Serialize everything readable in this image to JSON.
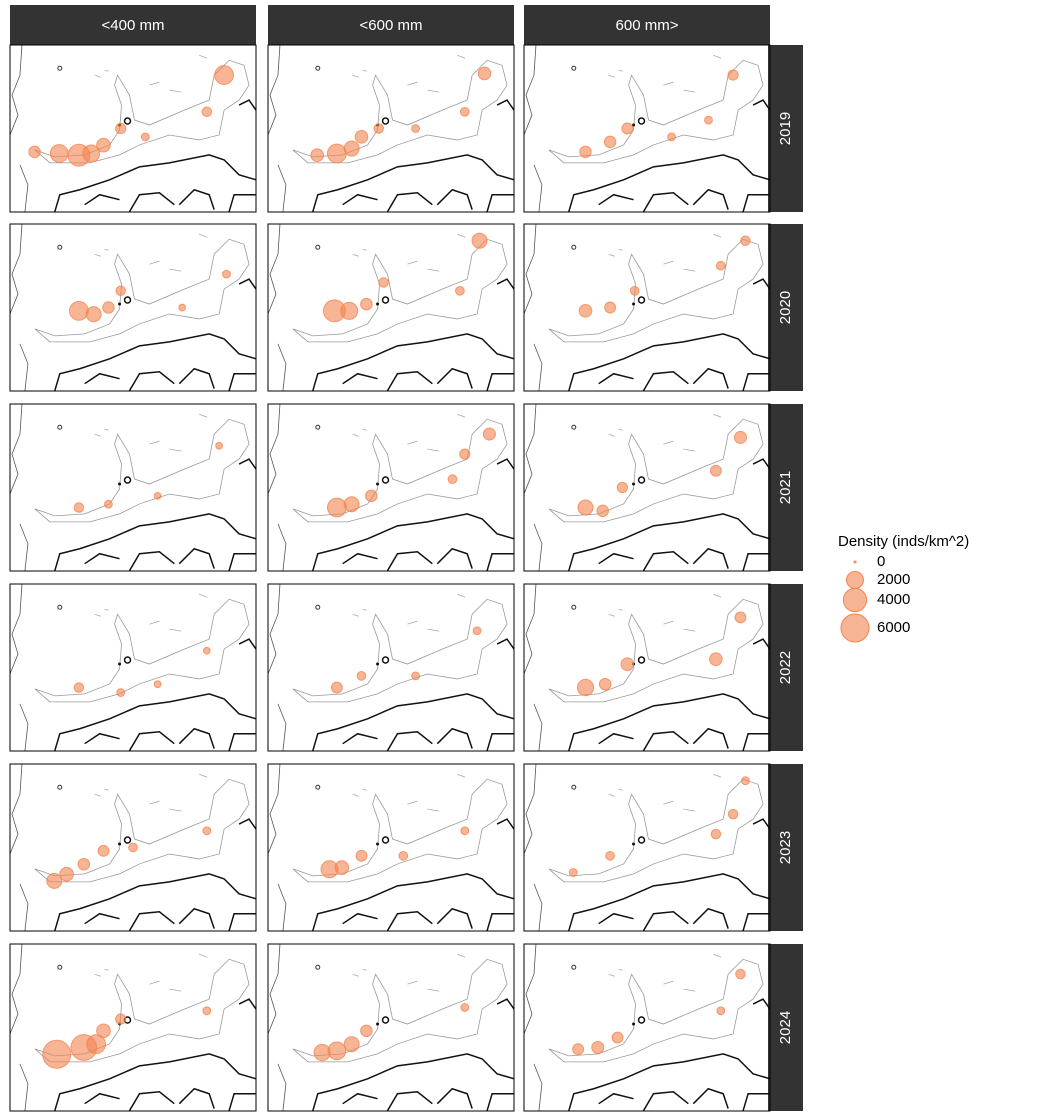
{
  "chart_data": {
    "type": "bubble-map",
    "columns": [
      "<400 mm",
      "<600 mm",
      "600 mm>"
    ],
    "rows": [
      "2019",
      "2020",
      "2021",
      "2022",
      "2023",
      "2024"
    ],
    "legend_title": "Density (inds/km^2)",
    "legend_values": [
      0,
      2000,
      4000,
      6000
    ],
    "color": "#f4844f",
    "xlim": [
      0,
      100
    ],
    "ylim": [
      0,
      100
    ],
    "size_max": 6000,
    "panels": [
      {
        "x": [
          10,
          20,
          28,
          33,
          38,
          45,
          87,
          80,
          55
        ],
        "y": [
          36,
          35,
          34,
          35,
          40,
          50,
          82,
          60,
          45
        ],
        "density": [
          800,
          2200,
          3500,
          2000,
          1200,
          600,
          2500,
          500,
          300
        ]
      },
      {
        "x": [
          20,
          28,
          34,
          38,
          45,
          88,
          80,
          60
        ],
        "y": [
          34,
          35,
          38,
          45,
          50,
          83,
          60,
          50
        ],
        "density": [
          1000,
          2500,
          1500,
          1000,
          500,
          1000,
          400,
          300
        ]
      },
      {
        "x": [
          25,
          35,
          42,
          85,
          75,
          60
        ],
        "y": [
          36,
          42,
          50,
          82,
          55,
          45
        ],
        "density": [
          800,
          800,
          700,
          600,
          300,
          300
        ]
      },
      {
        "x": [
          28,
          34,
          40,
          45,
          88,
          70
        ],
        "y": [
          48,
          46,
          50,
          60,
          70,
          50
        ],
        "density": [
          2500,
          1500,
          800,
          500,
          300,
          200
        ]
      },
      {
        "x": [
          27,
          33,
          40,
          47,
          86,
          78
        ],
        "y": [
          48,
          48,
          52,
          65,
          90,
          60
        ],
        "density": [
          3500,
          2000,
          800,
          500,
          1500,
          400
        ]
      },
      {
        "x": [
          25,
          35,
          45,
          80,
          90
        ],
        "y": [
          48,
          50,
          60,
          75,
          90
        ],
        "density": [
          1000,
          700,
          400,
          400,
          500
        ]
      },
      {
        "x": [
          28,
          40,
          60,
          85
        ],
        "y": [
          38,
          40,
          45,
          75
        ],
        "density": [
          500,
          300,
          200,
          200
        ]
      },
      {
        "x": [
          28,
          34,
          42,
          80,
          90,
          75
        ],
        "y": [
          38,
          40,
          45,
          70,
          82,
          55
        ],
        "density": [
          2500,
          1500,
          800,
          600,
          900,
          400
        ]
      },
      {
        "x": [
          25,
          32,
          40,
          78,
          88
        ],
        "y": [
          38,
          36,
          50,
          60,
          80
        ],
        "density": [
          1500,
          800,
          600,
          700,
          900
        ]
      },
      {
        "x": [
          28,
          45,
          60,
          80
        ],
        "y": [
          38,
          35,
          40,
          60
        ],
        "density": [
          500,
          300,
          200,
          200
        ]
      },
      {
        "x": [
          28,
          38,
          60,
          85
        ],
        "y": [
          38,
          45,
          45,
          72
        ],
        "density": [
          700,
          400,
          300,
          300
        ]
      },
      {
        "x": [
          25,
          33,
          42,
          78,
          88
        ],
        "y": [
          38,
          40,
          52,
          55,
          80
        ],
        "density": [
          1800,
          800,
          1000,
          1000,
          700
        ]
      },
      {
        "x": [
          18,
          23,
          30,
          38,
          50,
          80
        ],
        "y": [
          30,
          34,
          40,
          48,
          50,
          60
        ],
        "density": [
          1500,
          1200,
          800,
          700,
          400,
          300
        ]
      },
      {
        "x": [
          25,
          30,
          38,
          55,
          80
        ],
        "y": [
          37,
          38,
          45,
          45,
          60
        ],
        "density": [
          2000,
          1200,
          700,
          400,
          300
        ]
      },
      {
        "x": [
          20,
          35,
          78,
          85,
          90
        ],
        "y": [
          35,
          45,
          58,
          70,
          90
        ],
        "density": [
          300,
          400,
          500,
          500,
          300
        ]
      },
      {
        "x": [
          19,
          30,
          35,
          38,
          45,
          80
        ],
        "y": [
          34,
          38,
          40,
          48,
          55,
          60
        ],
        "density": [
          6000,
          5000,
          2500,
          1200,
          600,
          300
        ]
      },
      {
        "x": [
          22,
          28,
          34,
          40,
          80
        ],
        "y": [
          35,
          36,
          40,
          48,
          62
        ],
        "density": [
          1800,
          2200,
          1500,
          800,
          300
        ]
      },
      {
        "x": [
          22,
          30,
          38,
          80,
          88
        ],
        "y": [
          37,
          38,
          44,
          60,
          82
        ],
        "density": [
          700,
          900,
          700,
          300,
          500
        ]
      }
    ]
  }
}
